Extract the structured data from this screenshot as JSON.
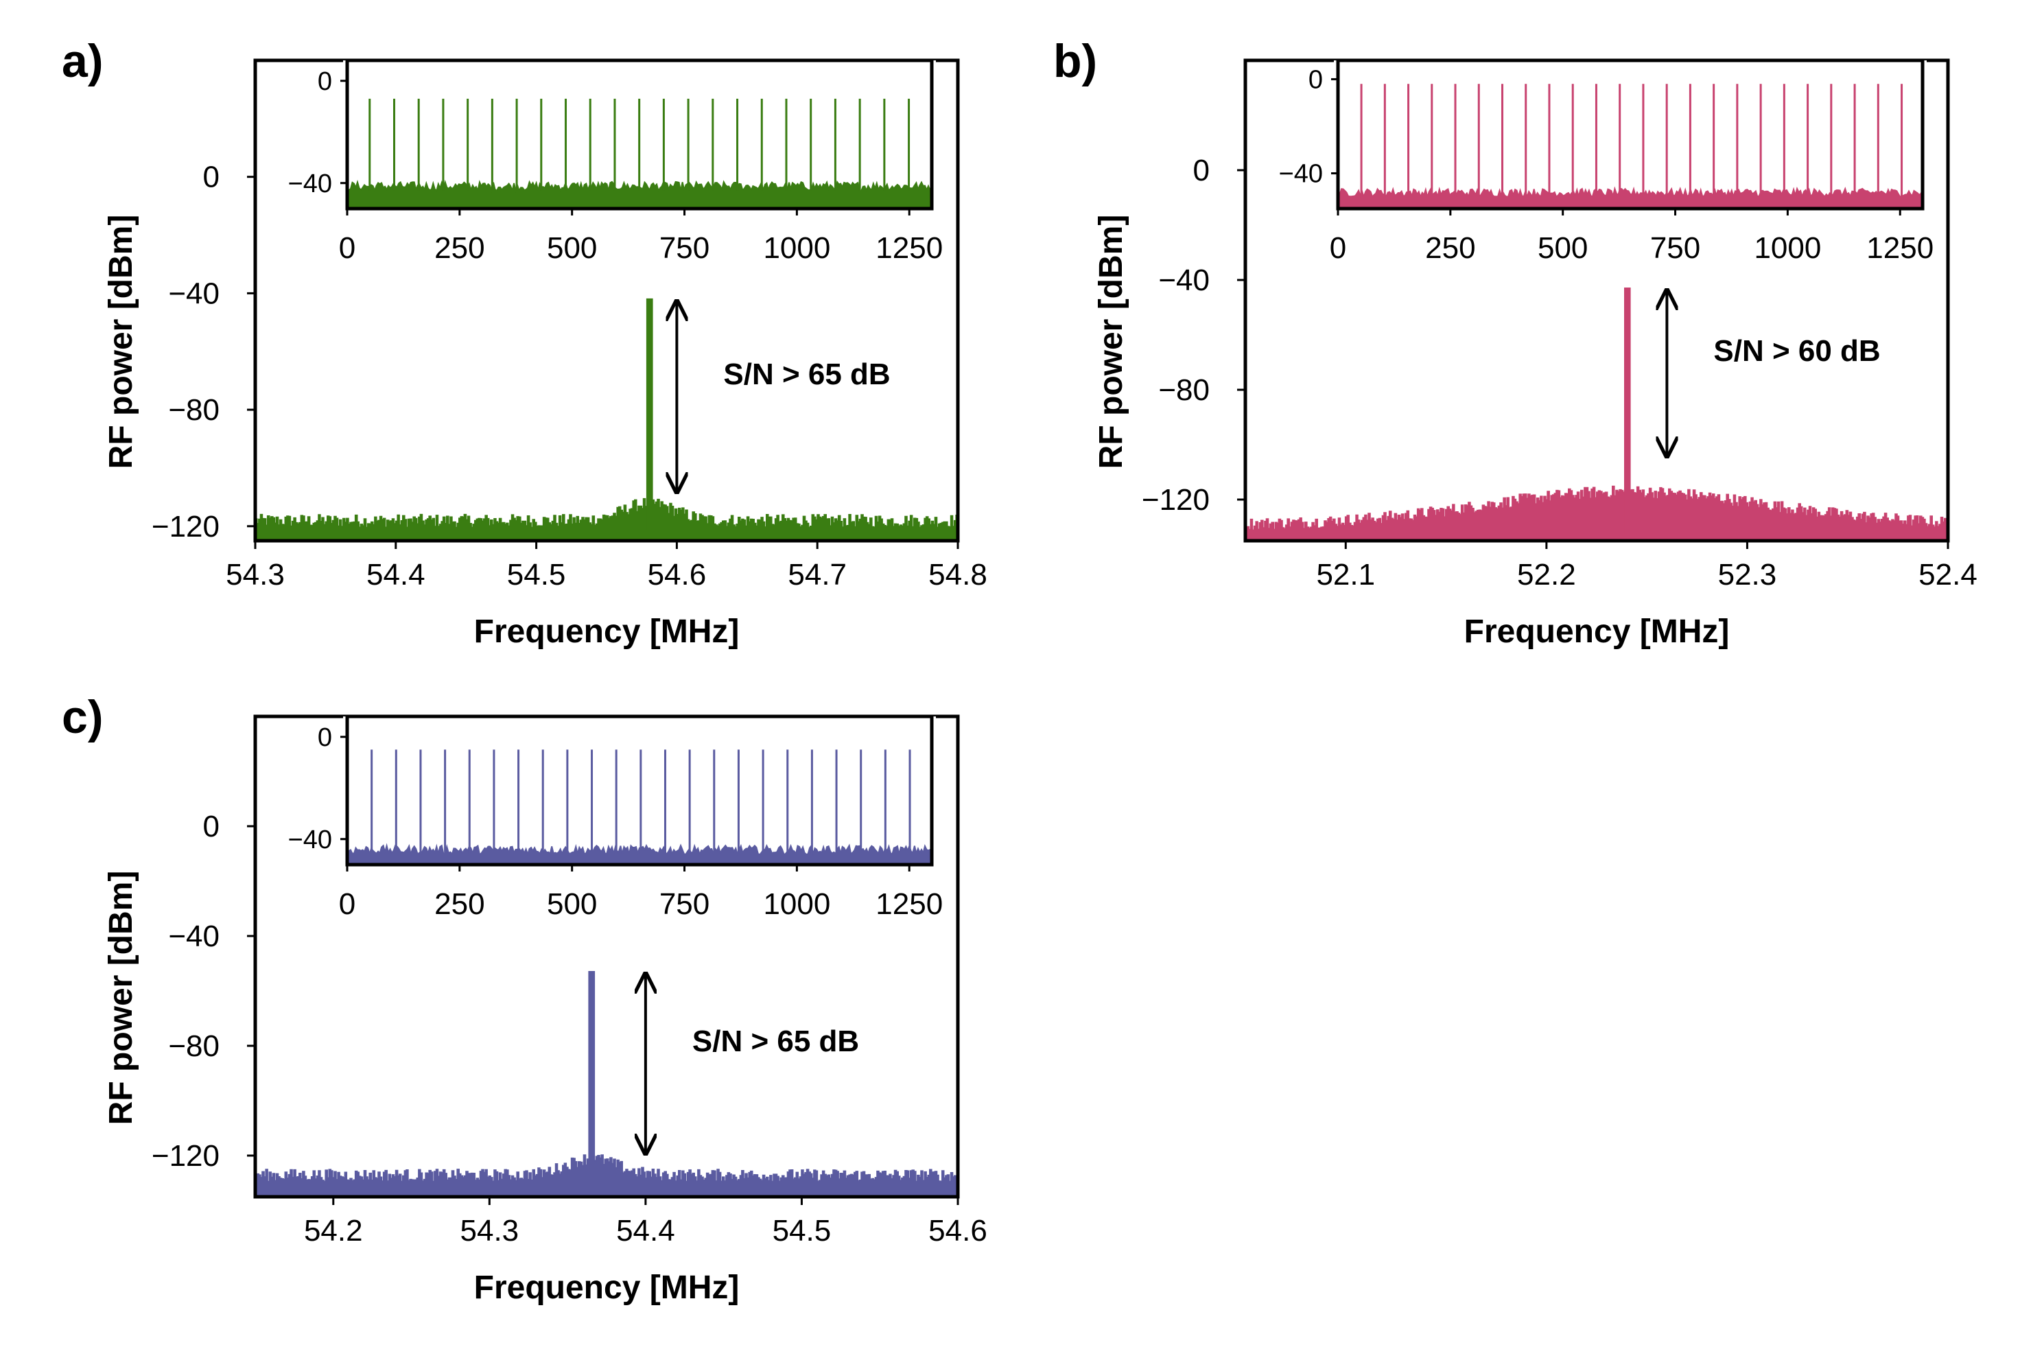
{
  "chart_data": [
    {
      "type": "line",
      "panel_label": "a)",
      "color": "#3a7d12",
      "xlabel": "Frequency [MHz]",
      "ylabel": "RF power [dBm]",
      "xlim": [
        54.3,
        54.8
      ],
      "ylim": [
        -125,
        40
      ],
      "xticks": [
        54.3,
        54.4,
        54.5,
        54.6,
        54.7,
        54.8
      ],
      "xtick_labels": [
        "54.3",
        "54.4",
        "54.5",
        "54.6",
        "54.7",
        "54.8"
      ],
      "yticks": [
        0,
        -40,
        -80,
        -120
      ],
      "ytick_labels": [
        "0",
        "−40",
        "−80",
        "−120"
      ],
      "peak_freq": 54.58,
      "peak_power": -42,
      "noise_floor": -119,
      "annotation": {
        "text": "S/N > 65 dB",
        "arrow_x": 54.6,
        "arrow_y": [
          -42,
          -109
        ]
      },
      "inset": {
        "xlim": [
          0,
          1300
        ],
        "ylim": [
          -50,
          8
        ],
        "xticks": [
          0,
          250,
          500,
          750,
          1000,
          1250
        ],
        "xtick_labels": [
          "0",
          "250",
          "500",
          "750",
          "1000",
          "1250"
        ],
        "yticks": [
          0,
          -40
        ],
        "ytick_labels": [
          "0",
          "−40"
        ],
        "comb_start": 50,
        "comb_spacing": 54.5,
        "comb_count": 23,
        "peak_power": -7,
        "noise_floor": -43
      }
    },
    {
      "type": "line",
      "panel_label": "b)",
      "color": "#c8426f",
      "xlabel": "Frequency [MHz]",
      "ylabel": "RF power [dBm]",
      "xlim": [
        52.05,
        52.4
      ],
      "ylim": [
        -135,
        40
      ],
      "xticks": [
        52.1,
        52.2,
        52.3,
        52.4
      ],
      "xtick_labels": [
        "52.1",
        "52.2",
        "52.3",
        "52.4"
      ],
      "yticks": [
        0,
        -40,
        -80,
        -120
      ],
      "ytick_labels": [
        "0",
        "−40",
        "−80",
        "−120"
      ],
      "peak_freq": 52.24,
      "peak_power": -43,
      "noise_floor": -130,
      "annotation": {
        "text": "S/N > 60 dB",
        "arrow_x": 52.26,
        "arrow_y": [
          -43,
          -105
        ]
      },
      "inset": {
        "xlim": [
          0,
          1300
        ],
        "ylim": [
          -55,
          8
        ],
        "xticks": [
          0,
          250,
          500,
          750,
          1000,
          1250
        ],
        "xtick_labels": [
          "0",
          "250",
          "500",
          "750",
          "1000",
          "1250"
        ],
        "yticks": [
          0,
          -40
        ],
        "ytick_labels": [
          "0",
          "−40"
        ],
        "comb_start": 52,
        "comb_spacing": 52.24,
        "comb_count": 24,
        "peak_power": -2,
        "noise_floor": -50
      }
    },
    {
      "type": "line",
      "panel_label": "c)",
      "color": "#5a5ba0",
      "xlabel": "Frequency [MHz]",
      "ylabel": "RF power [dBm]",
      "xlim": [
        54.15,
        54.6
      ],
      "ylim": [
        -135,
        40
      ],
      "xticks": [
        54.2,
        54.3,
        54.4,
        54.5,
        54.6
      ],
      "xtick_labels": [
        "54.2",
        "54.3",
        "54.4",
        "54.5",
        "54.6"
      ],
      "yticks": [
        0,
        -40,
        -80,
        -120
      ],
      "ytick_labels": [
        "0",
        "−40",
        "−80",
        "−120"
      ],
      "peak_freq": 54.365,
      "peak_power": -53,
      "noise_floor": -128,
      "annotation": {
        "text": "S/N > 65 dB",
        "arrow_x": 54.4,
        "arrow_y": [
          -53,
          -120
        ]
      },
      "inset": {
        "xlim": [
          0,
          1300
        ],
        "ylim": [
          -50,
          8
        ],
        "xticks": [
          0,
          250,
          500,
          750,
          1000,
          1250
        ],
        "xtick_labels": [
          "0",
          "250",
          "500",
          "750",
          "1000",
          "1250"
        ],
        "yticks": [
          0,
          -40
        ],
        "ytick_labels": [
          "0",
          "−40"
        ],
        "comb_start": 54.4,
        "comb_spacing": 54.4,
        "comb_count": 23,
        "peak_power": -5,
        "noise_floor": -46
      }
    }
  ]
}
